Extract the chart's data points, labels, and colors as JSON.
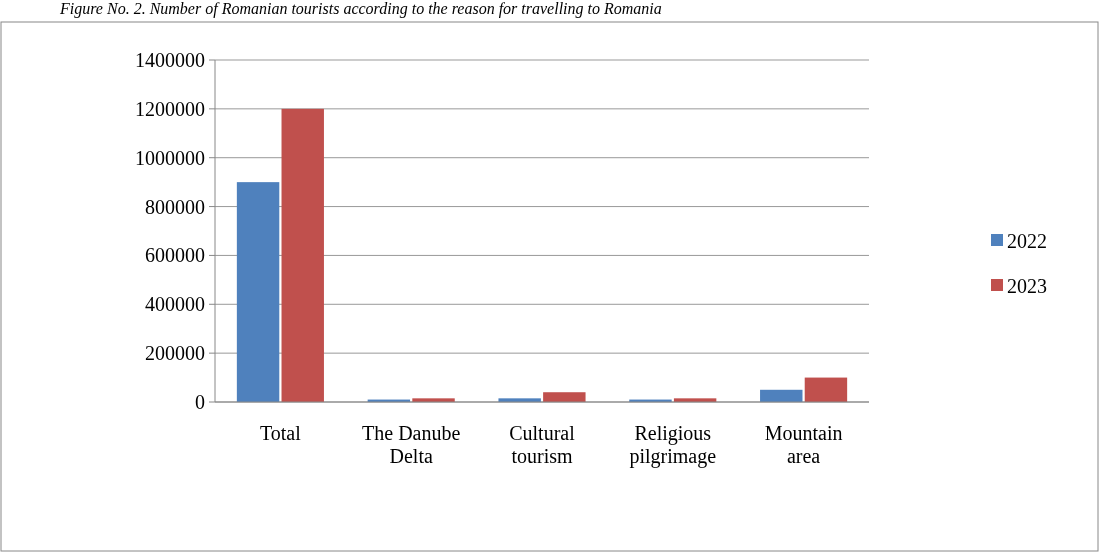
{
  "chart_data": {
    "type": "bar",
    "title": "Figure No. 2. Number of Romanian tourists according to the reason for travelling to Romania",
    "categories": [
      "Total",
      "The Danube Delta",
      "Cultural tourism",
      "Religious pilgrimage",
      "Mountain area"
    ],
    "series": [
      {
        "name": "2022",
        "color": "#4f81bd",
        "values": [
          900000,
          10000,
          15000,
          10000,
          50000
        ]
      },
      {
        "name": "2023",
        "color": "#c0504d",
        "values": [
          1200000,
          15000,
          40000,
          15000,
          100000
        ]
      }
    ],
    "ylim": [
      0,
      1400000
    ],
    "yticks": [
      0,
      200000,
      400000,
      600000,
      800000,
      1000000,
      1200000,
      1400000
    ],
    "grid": "y",
    "legend": "right"
  }
}
